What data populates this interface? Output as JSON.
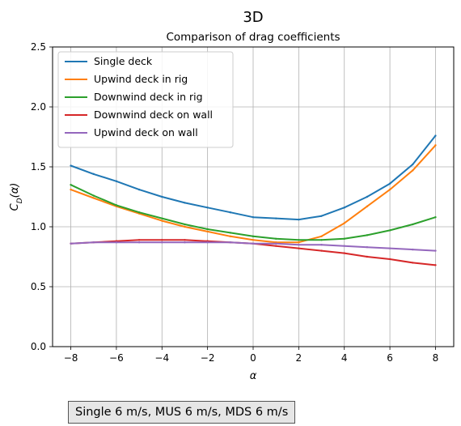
{
  "suptitle": "3D",
  "footnote": "Single 6 m/s, MUS 6 m/s, MDS 6 m/s",
  "chart_data": {
    "type": "line",
    "title": "Comparison of drag coefficients",
    "xlabel": "α",
    "ylabel": "C_D(α)",
    "xlim": [
      -8.8,
      8.8
    ],
    "ylim": [
      0.0,
      2.5
    ],
    "xticks": [
      -8,
      -6,
      -4,
      -2,
      0,
      2,
      4,
      6,
      8
    ],
    "yticks": [
      0.0,
      0.5,
      1.0,
      1.5,
      2.0,
      2.5
    ],
    "grid": true,
    "legend": "upper left",
    "x": [
      -8,
      -7,
      -6,
      -5,
      -4,
      -3,
      -2,
      -1,
      0,
      1,
      2,
      3,
      4,
      5,
      6,
      7,
      8
    ],
    "series": [
      {
        "name": "Single deck",
        "color": "#1f77b4",
        "values": [
          1.51,
          1.44,
          1.38,
          1.31,
          1.25,
          1.2,
          1.16,
          1.12,
          1.08,
          1.07,
          1.06,
          1.09,
          1.16,
          1.25,
          1.36,
          1.52,
          1.76
        ]
      },
      {
        "name": "Upwind deck in rig",
        "color": "#ff7f0e",
        "values": [
          1.31,
          1.24,
          1.17,
          1.11,
          1.05,
          1.0,
          0.96,
          0.92,
          0.89,
          0.87,
          0.87,
          0.92,
          1.03,
          1.17,
          1.31,
          1.47,
          1.68
        ]
      },
      {
        "name": "Downwind deck in rig",
        "color": "#2ca02c",
        "values": [
          1.35,
          1.26,
          1.18,
          1.12,
          1.07,
          1.02,
          0.98,
          0.95,
          0.92,
          0.9,
          0.89,
          0.89,
          0.9,
          0.93,
          0.97,
          1.02,
          1.08
        ]
      },
      {
        "name": "Downwind deck on wall",
        "color": "#d62728",
        "values": [
          0.86,
          0.87,
          0.88,
          0.89,
          0.89,
          0.89,
          0.88,
          0.87,
          0.86,
          0.84,
          0.82,
          0.8,
          0.78,
          0.75,
          0.73,
          0.7,
          0.68
        ]
      },
      {
        "name": "Upwind deck on wall",
        "color": "#9467bd",
        "values": [
          0.86,
          0.87,
          0.87,
          0.87,
          0.87,
          0.87,
          0.87,
          0.87,
          0.86,
          0.86,
          0.85,
          0.85,
          0.84,
          0.83,
          0.82,
          0.81,
          0.8
        ]
      }
    ]
  }
}
